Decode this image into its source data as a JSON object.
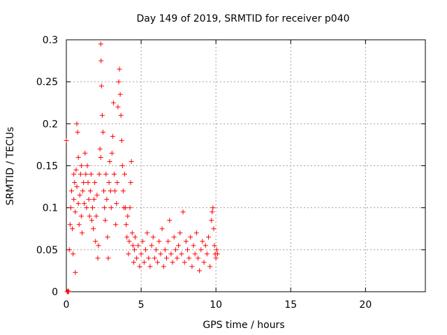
{
  "chart_data": {
    "type": "scatter",
    "title": "Day 149 of 2019, SRMTID for receiver p040",
    "xlabel": "GPS time / hours",
    "ylabel": "SRMTID / TECUs",
    "xlim": [
      0,
      24
    ],
    "ylim": [
      0,
      0.3
    ],
    "x_ticks": [
      0,
      5,
      10,
      15,
      20
    ],
    "x_tick_labels": [
      "0",
      "5",
      "10",
      "15",
      "20"
    ],
    "y_ticks": [
      0,
      0.05,
      0.1,
      0.15,
      0.2,
      0.25,
      0.3
    ],
    "y_tick_labels": [
      "0",
      "0.05",
      "0.1",
      "0.15",
      "0.2",
      "0.25",
      "0.3"
    ],
    "grid": true,
    "marker": "+",
    "series": [
      {
        "name": "SRMTID",
        "color": "#ff0000",
        "points": [
          [
            0.0,
            0.18
          ],
          [
            0.05,
            0.0
          ],
          [
            0.1,
            0.0
          ],
          [
            0.12,
            0.001
          ],
          [
            0.15,
            0.0
          ],
          [
            0.2,
            0.05
          ],
          [
            0.25,
            0.08
          ],
          [
            0.3,
            0.1
          ],
          [
            0.35,
            0.12
          ],
          [
            0.4,
            0.075
          ],
          [
            0.45,
            0.045
          ],
          [
            0.5,
            0.14
          ],
          [
            0.5,
            0.11
          ],
          [
            0.55,
            0.13
          ],
          [
            0.6,
            0.023
          ],
          [
            0.6,
            0.095
          ],
          [
            0.65,
            0.145
          ],
          [
            0.7,
            0.125
          ],
          [
            0.7,
            0.2
          ],
          [
            0.75,
            0.19
          ],
          [
            0.8,
            0.16
          ],
          [
            0.8,
            0.105
          ],
          [
            0.85,
            0.08
          ],
          [
            0.9,
            0.115
          ],
          [
            0.95,
            0.14
          ],
          [
            1.0,
            0.15
          ],
          [
            1.0,
            0.09
          ],
          [
            1.05,
            0.07
          ],
          [
            1.1,
            0.12
          ],
          [
            1.15,
            0.13
          ],
          [
            1.2,
            0.105
          ],
          [
            1.25,
            0.165
          ],
          [
            1.3,
            0.14
          ],
          [
            1.35,
            0.1
          ],
          [
            1.4,
            0.15
          ],
          [
            1.45,
            0.13
          ],
          [
            1.5,
            0.11
          ],
          [
            1.55,
            0.09
          ],
          [
            1.6,
            0.12
          ],
          [
            1.65,
            0.14
          ],
          [
            1.7,
            0.085
          ],
          [
            1.75,
            0.1
          ],
          [
            1.8,
            0.075
          ],
          [
            1.85,
            0.11
          ],
          [
            1.9,
            0.13
          ],
          [
            1.95,
            0.06
          ],
          [
            2.0,
            0.09
          ],
          [
            2.05,
            0.115
          ],
          [
            2.1,
            0.04
          ],
          [
            2.15,
            0.055
          ],
          [
            2.2,
            0.14
          ],
          [
            2.25,
            0.17
          ],
          [
            2.3,
            0.16
          ],
          [
            2.3,
            0.295
          ],
          [
            2.32,
            0.275
          ],
          [
            2.35,
            0.245
          ],
          [
            2.4,
            0.21
          ],
          [
            2.45,
            0.19
          ],
          [
            2.5,
            0.12
          ],
          [
            2.55,
            0.1
          ],
          [
            2.6,
            0.085
          ],
          [
            2.65,
            0.14
          ],
          [
            2.7,
            0.11
          ],
          [
            2.75,
            0.065
          ],
          [
            2.8,
            0.04
          ],
          [
            2.85,
            0.13
          ],
          [
            2.9,
            0.155
          ],
          [
            2.95,
            0.12
          ],
          [
            3.0,
            0.1
          ],
          [
            3.05,
            0.165
          ],
          [
            3.1,
            0.185
          ],
          [
            3.15,
            0.225
          ],
          [
            3.2,
            0.14
          ],
          [
            3.25,
            0.12
          ],
          [
            3.3,
            0.08
          ],
          [
            3.35,
            0.105
          ],
          [
            3.4,
            0.13
          ],
          [
            3.45,
            0.22
          ],
          [
            3.5,
            0.25
          ],
          [
            3.55,
            0.265
          ],
          [
            3.6,
            0.235
          ],
          [
            3.65,
            0.21
          ],
          [
            3.7,
            0.18
          ],
          [
            3.75,
            0.15
          ],
          [
            3.8,
            0.12
          ],
          [
            3.85,
            0.1
          ],
          [
            3.9,
            0.14
          ],
          [
            3.95,
            0.1
          ],
          [
            4.0,
            0.08
          ],
          [
            4.05,
            0.065
          ],
          [
            4.1,
            0.09
          ],
          [
            4.15,
            0.045
          ],
          [
            4.2,
            0.06
          ],
          [
            4.25,
            0.1
          ],
          [
            4.3,
            0.13
          ],
          [
            4.35,
            0.155
          ],
          [
            4.4,
            0.07
          ],
          [
            4.45,
            0.055
          ],
          [
            4.5,
            0.035
          ],
          [
            4.55,
            0.05
          ],
          [
            4.6,
            0.065
          ],
          [
            4.7,
            0.04
          ],
          [
            4.8,
            0.055
          ],
          [
            4.9,
            0.03
          ],
          [
            5.0,
            0.045
          ],
          [
            5.1,
            0.06
          ],
          [
            5.2,
            0.035
          ],
          [
            5.3,
            0.05
          ],
          [
            5.4,
            0.07
          ],
          [
            5.5,
            0.04
          ],
          [
            5.6,
            0.03
          ],
          [
            5.7,
            0.055
          ],
          [
            5.8,
            0.065
          ],
          [
            5.9,
            0.04
          ],
          [
            6.0,
            0.05
          ],
          [
            6.1,
            0.035
          ],
          [
            6.2,
            0.06
          ],
          [
            6.3,
            0.045
          ],
          [
            6.4,
            0.075
          ],
          [
            6.5,
            0.03
          ],
          [
            6.6,
            0.05
          ],
          [
            6.7,
            0.04
          ],
          [
            6.8,
            0.06
          ],
          [
            6.9,
            0.085
          ],
          [
            7.0,
            0.045
          ],
          [
            7.1,
            0.035
          ],
          [
            7.2,
            0.065
          ],
          [
            7.3,
            0.05
          ],
          [
            7.4,
            0.04
          ],
          [
            7.5,
            0.055
          ],
          [
            7.6,
            0.07
          ],
          [
            7.7,
            0.045
          ],
          [
            7.8,
            0.095
          ],
          [
            7.9,
            0.035
          ],
          [
            8.0,
            0.06
          ],
          [
            8.1,
            0.05
          ],
          [
            8.2,
            0.04
          ],
          [
            8.3,
            0.065
          ],
          [
            8.4,
            0.03
          ],
          [
            8.5,
            0.055
          ],
          [
            8.6,
            0.045
          ],
          [
            8.7,
            0.07
          ],
          [
            8.8,
            0.04
          ],
          [
            8.9,
            0.025
          ],
          [
            9.0,
            0.05
          ],
          [
            9.1,
            0.06
          ],
          [
            9.2,
            0.035
          ],
          [
            9.3,
            0.055
          ],
          [
            9.4,
            0.045
          ],
          [
            9.5,
            0.065
          ],
          [
            9.6,
            0.03
          ],
          [
            9.7,
            0.085
          ],
          [
            9.75,
            0.095
          ],
          [
            9.8,
            0.1
          ],
          [
            9.85,
            0.075
          ],
          [
            9.9,
            0.055
          ],
          [
            9.95,
            0.045
          ],
          [
            10.0,
            0.04
          ],
          [
            10.05,
            0.05
          ],
          [
            10.1,
            0.045
          ]
        ]
      }
    ]
  }
}
